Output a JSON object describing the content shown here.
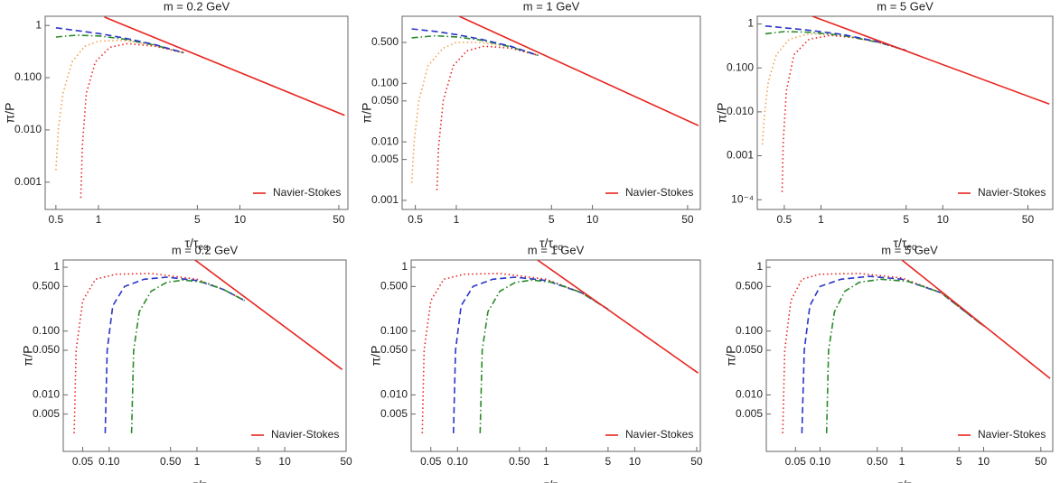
{
  "chart_data": [
    {
      "type": "line",
      "title": "m = 0.2 GeV",
      "xlabel": "τ/τ",
      "xlabel_sub": "eq",
      "ylabel": "π/P",
      "log_x": true,
      "log_y": true,
      "legend": "lower right",
      "xlim": [
        0.42,
        58
      ],
      "xticks": [
        0.5,
        1,
        5,
        10,
        50
      ],
      "ylim": [
        0.0003,
        1.5
      ],
      "yticks": [
        1,
        {
          "value": 0.1,
          "label": "0.100"
        },
        {
          "value": 0.01,
          "label": "0.010"
        },
        0.001
      ],
      "series": [
        {
          "color": "#f0a050",
          "dash": "dotted",
          "x": [
            0.5,
            0.52,
            0.56,
            0.65,
            0.8,
            1.0,
            1.5,
            2.5,
            4
          ],
          "values": [
            0.0017,
            0.01,
            0.05,
            0.2,
            0.4,
            0.5,
            0.52,
            0.42,
            0.3
          ]
        },
        {
          "color": "#e8251f",
          "dash": "dotted",
          "x": [
            0.75,
            0.77,
            0.82,
            0.95,
            1.2,
            1.6,
            2.5,
            4
          ],
          "values": [
            0.0005,
            0.005,
            0.05,
            0.2,
            0.38,
            0.45,
            0.4,
            0.3
          ]
        },
        {
          "color": "#2a8a2a",
          "dash": "dashdot",
          "x": [
            0.5,
            0.7,
            1,
            1.5,
            2.5,
            4
          ],
          "values": [
            0.6,
            0.65,
            0.63,
            0.55,
            0.42,
            0.3
          ]
        },
        {
          "color": "#2a35c8",
          "dash": "dashed",
          "x": [
            0.5,
            0.7,
            1,
            1.5,
            2.5,
            4
          ],
          "values": [
            0.9,
            0.8,
            0.7,
            0.58,
            0.43,
            0.3
          ]
        },
        {
          "name": "Navier-Stokes",
          "color": "#e8251f",
          "dash": "solid",
          "x": [
            1.1,
            55
          ],
          "values": [
            1.45,
            0.019
          ]
        }
      ]
    },
    {
      "type": "line",
      "title": "m = 1 GeV",
      "xlabel": "τ/τ",
      "xlabel_sub": "eq",
      "ylabel": "π/P",
      "log_x": true,
      "log_y": true,
      "legend": "lower right",
      "xlim": [
        0.4,
        62
      ],
      "xticks": [
        0.5,
        1,
        5,
        10,
        50
      ],
      "ylim": [
        0.0007,
        1.4
      ],
      "yticks": [
        {
          "value": 0.5,
          "label": "0.500"
        },
        {
          "value": 0.1,
          "label": "0.100"
        },
        {
          "value": 0.05,
          "label": "0.050"
        },
        {
          "value": 0.01,
          "label": "0.010"
        },
        0.005,
        0.001
      ],
      "series": [
        {
          "color": "#f0a050",
          "dash": "dotted",
          "x": [
            0.47,
            0.49,
            0.53,
            0.62,
            0.8,
            1.0,
            1.5,
            2.5,
            4
          ],
          "values": [
            0.002,
            0.01,
            0.05,
            0.2,
            0.4,
            0.5,
            0.5,
            0.42,
            0.3
          ]
        },
        {
          "color": "#e8251f",
          "dash": "dotted",
          "x": [
            0.72,
            0.74,
            0.8,
            0.95,
            1.2,
            1.6,
            2.5,
            4
          ],
          "values": [
            0.0015,
            0.008,
            0.05,
            0.2,
            0.36,
            0.43,
            0.4,
            0.3
          ]
        },
        {
          "color": "#2a8a2a",
          "dash": "dashdot",
          "x": [
            0.47,
            0.7,
            1,
            1.5,
            2.5,
            4
          ],
          "values": [
            0.6,
            0.65,
            0.62,
            0.55,
            0.42,
            0.3
          ]
        },
        {
          "color": "#2a35c8",
          "dash": "dashed",
          "x": [
            0.47,
            0.7,
            1,
            1.5,
            2.5,
            4
          ],
          "values": [
            0.85,
            0.77,
            0.68,
            0.57,
            0.43,
            0.3
          ]
        },
        {
          "name": "Navier-Stokes",
          "color": "#e8251f",
          "dash": "solid",
          "x": [
            1.05,
            60
          ],
          "values": [
            1.4,
            0.019
          ]
        }
      ]
    },
    {
      "type": "line",
      "title": "m = 5 GeV",
      "xlabel": "τ/τ",
      "xlabel_sub": "eq",
      "ylabel": "π/P",
      "log_x": true,
      "log_y": true,
      "legend": "lower right",
      "xlim": [
        0.3,
        80
      ],
      "xticks": [
        0.5,
        1,
        5,
        10,
        50
      ],
      "ylim": [
        6e-05,
        1.5
      ],
      "yticks": [
        1,
        {
          "value": 0.1,
          "label": "0.100"
        },
        {
          "value": 0.01,
          "label": "0.010"
        },
        0.001,
        {
          "value": 0.0001,
          "label": "10⁻⁴"
        }
      ],
      "series": [
        {
          "color": "#f0a050",
          "dash": "dotted",
          "x": [
            0.33,
            0.345,
            0.37,
            0.43,
            0.55,
            0.8,
            1.5,
            3,
            5
          ],
          "values": [
            0.0018,
            0.01,
            0.05,
            0.2,
            0.45,
            0.6,
            0.55,
            0.38,
            0.25
          ]
        },
        {
          "color": "#e8251f",
          "dash": "dotted",
          "x": [
            0.48,
            0.49,
            0.52,
            0.6,
            0.8,
            1.2,
            2,
            3,
            5
          ],
          "values": [
            0.00015,
            0.002,
            0.03,
            0.2,
            0.45,
            0.55,
            0.48,
            0.38,
            0.25
          ]
        },
        {
          "color": "#2a8a2a",
          "dash": "dashdot",
          "x": [
            0.35,
            0.5,
            0.8,
            1.5,
            3,
            5
          ],
          "values": [
            0.6,
            0.67,
            0.65,
            0.55,
            0.38,
            0.25
          ]
        },
        {
          "color": "#2a35c8",
          "dash": "dashed",
          "x": [
            0.35,
            0.5,
            0.8,
            1.5,
            3,
            5
          ],
          "values": [
            0.9,
            0.82,
            0.72,
            0.58,
            0.39,
            0.25
          ]
        },
        {
          "name": "Navier-Stokes",
          "color": "#e8251f",
          "dash": "solid",
          "x": [
            0.85,
            75
          ],
          "values": [
            1.5,
            0.015
          ]
        }
      ]
    },
    {
      "type": "line",
      "title": "m = 0.2 GeV",
      "xlabel": "τ/τ",
      "xlabel_sub": "eq",
      "ylabel": "π/P",
      "log_x": true,
      "log_y": true,
      "legend": "lower right",
      "xlim": [
        0.03,
        50
      ],
      "xticks": [
        0.05,
        {
          "value": 0.1,
          "label": "0.10"
        },
        {
          "value": 0.5,
          "label": "0.50"
        },
        1,
        5,
        10,
        50
      ],
      "ylim": [
        0.0013,
        1.3
      ],
      "yticks": [
        1,
        {
          "value": 0.5,
          "label": "0.500"
        },
        {
          "value": 0.1,
          "label": "0.100"
        },
        {
          "value": 0.05,
          "label": "0.050"
        },
        {
          "value": 0.01,
          "label": "0.010"
        },
        0.005
      ],
      "series": [
        {
          "color": "#e8251f",
          "dash": "dotted",
          "x": [
            0.04,
            0.042,
            0.05,
            0.07,
            0.12,
            0.3,
            1,
            2,
            3.5
          ],
          "values": [
            0.0025,
            0.05,
            0.3,
            0.65,
            0.78,
            0.8,
            0.65,
            0.45,
            0.3
          ]
        },
        {
          "color": "#2a35c8",
          "dash": "dashed",
          "x": [
            0.09,
            0.095,
            0.11,
            0.15,
            0.25,
            0.45,
            1,
            2,
            3.5
          ],
          "values": [
            0.0025,
            0.05,
            0.25,
            0.5,
            0.65,
            0.7,
            0.62,
            0.45,
            0.3
          ]
        },
        {
          "color": "#2a8a2a",
          "dash": "dashdot",
          "x": [
            0.18,
            0.19,
            0.22,
            0.3,
            0.45,
            0.7,
            1.2,
            2,
            3.5
          ],
          "values": [
            0.0025,
            0.05,
            0.2,
            0.42,
            0.58,
            0.63,
            0.58,
            0.45,
            0.3
          ]
        },
        {
          "name": "Navier-Stokes",
          "color": "#e8251f",
          "dash": "solid",
          "x": [
            0.95,
            45
          ],
          "values": [
            1.3,
            0.025
          ]
        }
      ]
    },
    {
      "type": "line",
      "title": "m = 1 GeV",
      "xlabel": "τ/τ",
      "xlabel_sub": "eq",
      "ylabel": "π/P",
      "log_x": true,
      "log_y": true,
      "legend": "lower right",
      "xlim": [
        0.03,
        55
      ],
      "xticks": [
        0.05,
        {
          "value": 0.1,
          "label": "0.10"
        },
        {
          "value": 0.5,
          "label": "0.50"
        },
        1,
        5,
        10,
        50
      ],
      "ylim": [
        0.0013,
        1.3
      ],
      "yticks": [
        1,
        {
          "value": 0.5,
          "label": "0.500"
        },
        {
          "value": 0.1,
          "label": "0.100"
        },
        {
          "value": 0.05,
          "label": "0.050"
        },
        {
          "value": 0.01,
          "label": "0.010"
        },
        0.005
      ],
      "series": [
        {
          "color": "#e8251f",
          "dash": "dotted",
          "x": [
            0.04,
            0.042,
            0.05,
            0.07,
            0.12,
            0.3,
            1,
            2.5,
            5
          ],
          "values": [
            0.0025,
            0.05,
            0.3,
            0.65,
            0.78,
            0.8,
            0.65,
            0.4,
            0.22
          ]
        },
        {
          "color": "#2a35c8",
          "dash": "dashed",
          "x": [
            0.09,
            0.095,
            0.11,
            0.15,
            0.25,
            0.45,
            1,
            2.5,
            5
          ],
          "values": [
            0.0025,
            0.05,
            0.25,
            0.5,
            0.65,
            0.7,
            0.62,
            0.4,
            0.22
          ]
        },
        {
          "color": "#2a8a2a",
          "dash": "dashdot",
          "x": [
            0.18,
            0.19,
            0.22,
            0.3,
            0.45,
            0.7,
            1.2,
            2.5,
            5
          ],
          "values": [
            0.0025,
            0.05,
            0.2,
            0.42,
            0.58,
            0.63,
            0.58,
            0.4,
            0.22
          ]
        },
        {
          "name": "Navier-Stokes",
          "color": "#e8251f",
          "dash": "solid",
          "x": [
            0.8,
            52
          ],
          "values": [
            1.3,
            0.022
          ]
        }
      ]
    },
    {
      "type": "line",
      "title": "m = 5 GeV",
      "xlabel": "τ/τ",
      "xlabel_sub": "eq",
      "ylabel": "π/P",
      "log_x": true,
      "log_y": true,
      "legend": "lower right",
      "xlim": [
        0.022,
        70
      ],
      "xticks": [
        0.05,
        {
          "value": 0.1,
          "label": "0.10"
        },
        {
          "value": 0.5,
          "label": "0.50"
        },
        1,
        5,
        10,
        50
      ],
      "ylim": [
        0.0013,
        1.3
      ],
      "yticks": [
        1,
        {
          "value": 0.5,
          "label": "0.500"
        },
        {
          "value": 0.1,
          "label": "0.100"
        },
        {
          "value": 0.05,
          "label": "0.050"
        },
        {
          "value": 0.01,
          "label": "0.010"
        },
        0.005
      ],
      "series": [
        {
          "color": "#e8251f",
          "dash": "dotted",
          "x": [
            0.035,
            0.037,
            0.044,
            0.06,
            0.1,
            0.3,
            1,
            3,
            10
          ],
          "values": [
            0.0025,
            0.05,
            0.3,
            0.65,
            0.78,
            0.8,
            0.68,
            0.4,
            0.12
          ]
        },
        {
          "color": "#2a35c8",
          "dash": "dashed",
          "x": [
            0.06,
            0.064,
            0.075,
            0.1,
            0.18,
            0.4,
            1,
            3,
            10
          ],
          "values": [
            0.0025,
            0.05,
            0.25,
            0.5,
            0.65,
            0.72,
            0.65,
            0.4,
            0.12
          ]
        },
        {
          "color": "#2a8a2a",
          "dash": "dashdot",
          "x": [
            0.12,
            0.127,
            0.15,
            0.2,
            0.3,
            0.55,
            1.2,
            3,
            10
          ],
          "values": [
            0.0025,
            0.05,
            0.2,
            0.42,
            0.58,
            0.65,
            0.6,
            0.4,
            0.12
          ]
        },
        {
          "name": "Navier-Stokes",
          "color": "#e8251f",
          "dash": "solid",
          "x": [
            1,
            65
          ],
          "values": [
            1.3,
            0.018
          ]
        }
      ]
    }
  ]
}
